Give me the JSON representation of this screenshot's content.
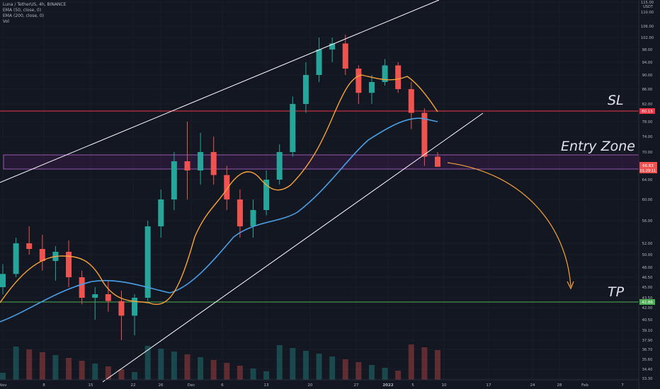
{
  "legend": {
    "title": "Luna / TetherUS, 4h, BINANCE",
    "ema50": "EMA (50, close, 0)",
    "ema200": "EMA (200, close, 0)",
    "vol": "Vol"
  },
  "annotations": {
    "sl": "SL",
    "entry": "Entry Zone",
    "tp": "TP"
  },
  "colors": {
    "background": "#131722",
    "up": "#26a69a",
    "down": "#ef5350",
    "ema50": "#f7a23b",
    "ema200": "#4a9fe6",
    "sl": "#f23645",
    "tp": "#4caf50",
    "zone": "#9c27b0",
    "channel": "#ffffff",
    "projection": "#f7a23b"
  },
  "chart_data": {
    "type": "candlestick",
    "symbol": "Luna / TetherUS",
    "timeframe": "4h",
    "exchange": "BINANCE",
    "currency": "USDT",
    "y_ticks": [
      "115.00",
      "110.00",
      "106.00",
      "102.00",
      "98.00",
      "94.00",
      "90.00",
      "86.00",
      "82.00",
      "78.00",
      "74.00",
      "70.00",
      "64.00",
      "60.00",
      "56.00",
      "52.00",
      "50.00",
      "48.00",
      "46.50",
      "45.00",
      "43.50",
      "42.00",
      "40.50",
      "39.10",
      "37.90",
      "36.70",
      "35.60",
      "34.40",
      "33.30"
    ],
    "x_ticks": [
      "Nov",
      "8",
      "15",
      "22",
      "26",
      "Dec",
      "6",
      "13",
      "20",
      "27",
      "2022",
      "5",
      "10",
      "17",
      "24",
      "28",
      "Feb",
      "7"
    ],
    "ylim": [
      33,
      118
    ],
    "series_ohlc_approx": [
      [
        45.0,
        48.5,
        44.0,
        47.0
      ],
      [
        47.0,
        53.0,
        46.5,
        52.0
      ],
      [
        52.0,
        55.0,
        50.0,
        51.0
      ],
      [
        51.0,
        53.5,
        47.5,
        49.0
      ],
      [
        49.0,
        51.5,
        46.0,
        50.5
      ],
      [
        50.5,
        52.5,
        45.0,
        46.5
      ],
      [
        46.5,
        47.5,
        42.5,
        43.5
      ],
      [
        43.5,
        45.0,
        40.5,
        44.0
      ],
      [
        44.0,
        46.0,
        41.5,
        43.0
      ],
      [
        43.0,
        44.5,
        37.9,
        41.0
      ],
      [
        41.0,
        44.0,
        38.5,
        43.5
      ],
      [
        43.5,
        56.0,
        43.0,
        55.0
      ],
      [
        55.0,
        62.0,
        53.0,
        60.0
      ],
      [
        60.0,
        70.0,
        58.0,
        68.0
      ],
      [
        68.0,
        78.0,
        60.0,
        66.0
      ],
      [
        66.0,
        75.0,
        63.0,
        70.0
      ],
      [
        70.0,
        74.0,
        63.0,
        65.0
      ],
      [
        65.0,
        67.0,
        58.0,
        60.0
      ],
      [
        60.0,
        62.0,
        53.0,
        55.0
      ],
      [
        55.0,
        60.0,
        53.0,
        58.0
      ],
      [
        58.0,
        66.0,
        57.0,
        64.0
      ],
      [
        64.0,
        72.0,
        63.0,
        70.0
      ],
      [
        70.0,
        84.0,
        69.0,
        82.0
      ],
      [
        82.0,
        94.0,
        80.0,
        90.0
      ],
      [
        90.0,
        102.0,
        88.0,
        98.0
      ],
      [
        98.0,
        102.0,
        94.0,
        100.0
      ],
      [
        100.0,
        103.0,
        90.0,
        92.0
      ],
      [
        92.0,
        93.0,
        82.0,
        85.0
      ],
      [
        85.0,
        90.0,
        82.0,
        88.0
      ],
      [
        88.0,
        95.0,
        87.0,
        93.0
      ],
      [
        93.0,
        94.0,
        85.0,
        86.0
      ],
      [
        86.0,
        88.0,
        76.0,
        80.0
      ],
      [
        80.0,
        81.0,
        67.0,
        69.0
      ],
      [
        69.0,
        70.0,
        66.8,
        66.8
      ]
    ],
    "ema50_label": "EMA (50, close, 0)",
    "ema200_label": "EMA (200, close, 0)",
    "levels": [
      {
        "name": "SL",
        "price": 80.15,
        "label": "80.15"
      },
      {
        "name": "TP",
        "price": 42.86,
        "label": "42.86"
      },
      {
        "name": "Entry Zone",
        "price_top": 69.2,
        "price_bottom": 66.8
      }
    ],
    "last_price": {
      "label": "66.83",
      "countdown": "01:29:11"
    },
    "grid": true
  }
}
